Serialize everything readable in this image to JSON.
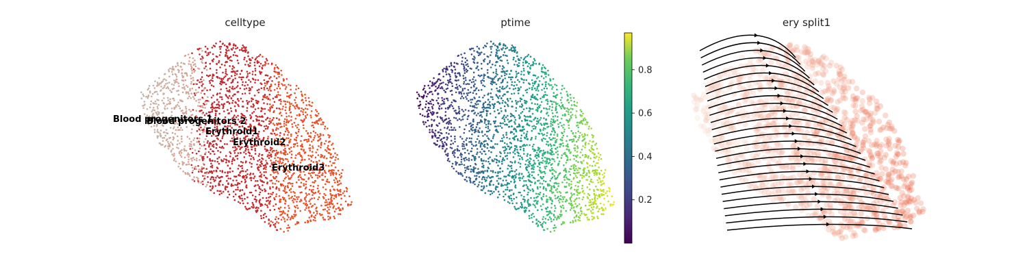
{
  "chart_data": [
    {
      "type": "scatter",
      "title": "celltype",
      "categories": [
        "Blood progenitors 1",
        "Blood progenitors 2",
        "Erythroid1",
        "Erythroid2",
        "Erythroid3"
      ],
      "colors": {
        "Blood progenitors 1": "#c9b2a4",
        "Blood progenitors 2": "#d3a596",
        "Erythroid1": "#c0282e",
        "Erythroid2": "#c9282c",
        "Erythroid3": "#e8512a"
      },
      "annotations": [
        "Blood progenitors 1",
        "Blood progenitors 2",
        "Erythroid1",
        "Erythroid2",
        "Erythroid3"
      ],
      "grid": false
    },
    {
      "type": "scatter",
      "title": "ptime",
      "colormap": "viridis",
      "colorbar": {
        "range": [
          0.0,
          0.97
        ],
        "ticks": [
          "0.2",
          "0.4",
          "0.6",
          "0.8"
        ],
        "tick_values": [
          0.2,
          0.4,
          0.6,
          0.8
        ]
      },
      "grid": false
    },
    {
      "type": "scatter",
      "title": "ery split1",
      "overlay": "velocity streamlines",
      "stream_color": "#000000",
      "point_colors": [
        "#f2d3c4",
        "#e8512a"
      ],
      "grid": false
    }
  ]
}
